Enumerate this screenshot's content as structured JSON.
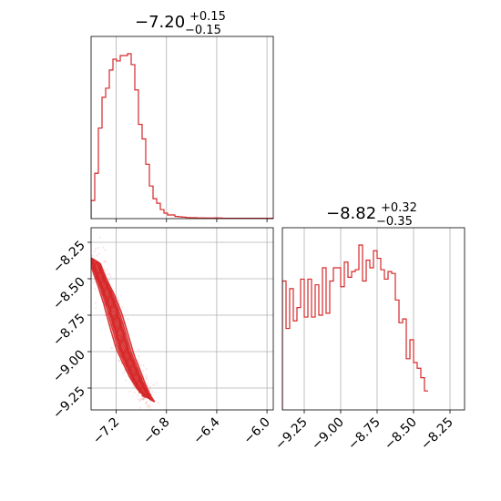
{
  "chart_data": {
    "type": "corner",
    "color": "#d62728",
    "grid": true,
    "parameters": [
      {
        "id": "p1",
        "title": {
          "main": "−7.20",
          "plus": "+0.15",
          "minus": "−0.15"
        },
        "range": [
          -7.4,
          -5.95
        ],
        "ticks": [
          -7.2,
          -6.8,
          -6.4,
          -6.0
        ],
        "tick_labels": [
          "−7.2",
          "−6.8",
          "−6.4",
          "−6.0"
        ]
      },
      {
        "id": "p2",
        "title": {
          "main": "−8.82",
          "plus": "+0.32",
          "minus": "−0.35"
        },
        "range": [
          -9.4,
          -8.15
        ],
        "ticks": [
          -9.25,
          -9.0,
          -8.75,
          -8.5,
          -8.25
        ],
        "tick_labels": [
          "−9.25",
          "−9.00",
          "−8.75",
          "−8.50",
          "−8.25"
        ]
      }
    ],
    "hist1": {
      "edges_start": -7.4,
      "bin_width": 0.029,
      "counts": [
        0.1,
        0.25,
        0.5,
        0.67,
        0.72,
        0.82,
        0.88,
        0.87,
        0.9,
        0.9,
        0.91,
        0.85,
        0.71,
        0.52,
        0.44,
        0.3,
        0.18,
        0.11,
        0.085,
        0.05,
        0.03,
        0.02,
        0.02,
        0.012,
        0.01,
        0.008,
        0.006,
        0.005,
        0.005,
        0.004,
        0.004,
        0.003,
        0.003,
        0.003,
        0.004,
        0.003,
        0.002,
        0.002,
        0.002,
        0.002,
        0.002,
        0.002,
        0.002,
        0.002,
        0.002,
        0.002,
        0.002,
        0.002,
        0.002,
        0.002
      ]
    },
    "hist2": {
      "edges_start": -9.4,
      "bin_width": 0.025,
      "counts": [
        0.68,
        0.43,
        0.64,
        0.47,
        0.54,
        0.69,
        0.49,
        0.69,
        0.49,
        0.66,
        0.5,
        0.75,
        0.51,
        0.68,
        0.75,
        0.75,
        0.65,
        0.78,
        0.7,
        0.73,
        0.74,
        0.87,
        0.68,
        0.79,
        0.75,
        0.84,
        0.8,
        0.74,
        0.69,
        0.73,
        0.72,
        0.58,
        0.46,
        0.48,
        0.27,
        0.37,
        0.25,
        0.22,
        0.17,
        0.1
      ]
    },
    "ridge2d": {
      "x": [
        -7.38,
        -7.33,
        -7.28,
        -7.23,
        -7.18,
        -7.13,
        -7.08,
        -7.03,
        -6.98,
        -6.93
      ],
      "y": [
        -8.35,
        -8.48,
        -8.58,
        -8.7,
        -8.85,
        -9.0,
        -9.1,
        -9.2,
        -9.28,
        -9.33
      ]
    }
  }
}
